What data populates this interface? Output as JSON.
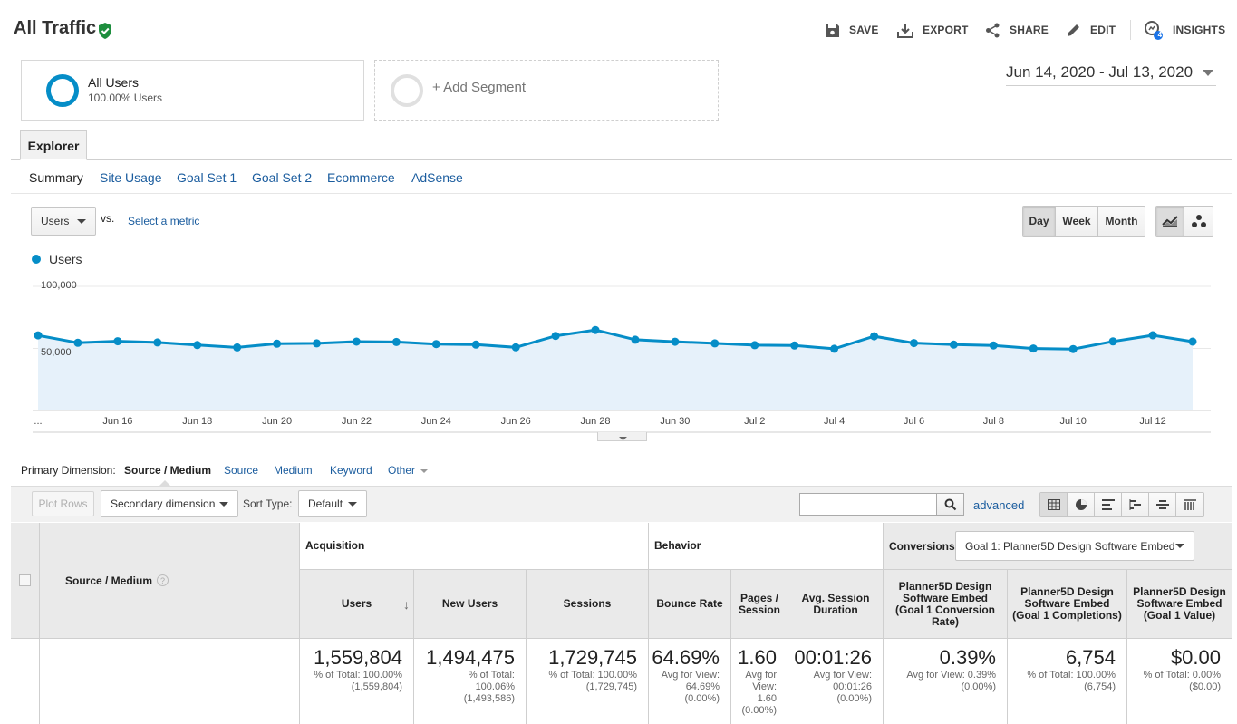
{
  "header": {
    "title": "All Traffic",
    "toolbar": [
      {
        "label": "SAVE",
        "icon": "save-icon"
      },
      {
        "label": "EXPORT",
        "icon": "export-icon"
      },
      {
        "label": "SHARE",
        "icon": "share-icon"
      },
      {
        "label": "EDIT",
        "icon": "edit-icon"
      },
      {
        "label": "INSIGHTS",
        "icon": "insights-icon",
        "badge": "4"
      }
    ]
  },
  "segments": {
    "active": {
      "name": "All Users",
      "sub": "100.00% Users"
    },
    "add_label": "+ Add Segment"
  },
  "date_range": "Jun 14, 2020 - Jul 13, 2020",
  "tabs": {
    "explorer": "Explorer",
    "subtabs": [
      "Summary",
      "Site Usage",
      "Goal Set 1",
      "Goal Set 2",
      "Ecommerce",
      "AdSense"
    ]
  },
  "chart_controls": {
    "metric": "Users",
    "vs": "vs.",
    "select_metric": "Select a metric",
    "periods": [
      "Day",
      "Week",
      "Month"
    ],
    "active_period": "Day"
  },
  "chart_data": {
    "type": "line",
    "title": "",
    "series": [
      {
        "name": "Users",
        "values": [
          60500,
          54500,
          55800,
          54800,
          52700,
          50800,
          53800,
          54100,
          55500,
          55200,
          53500,
          53100,
          50900,
          60100,
          64800,
          57000,
          55400,
          54100,
          52600,
          52300,
          49700,
          59800,
          54300,
          53100,
          52400,
          49900,
          49500,
          55600,
          60600,
          55500
        ]
      }
    ],
    "x_tick_labels": [
      "...",
      "Jun 16",
      "Jun 18",
      "Jun 20",
      "Jun 22",
      "Jun 24",
      "Jun 26",
      "Jun 28",
      "Jun 30",
      "Jul 2",
      "Jul 4",
      "Jul 6",
      "Jul 8",
      "Jul 10",
      "Jul 12"
    ],
    "y_tick_labels": [
      "100,000",
      "50,000"
    ],
    "ylim": [
      0,
      100000
    ],
    "color": "#058dc7",
    "fill": "#e6f1fa"
  },
  "primary_dimension": {
    "label": "Primary Dimension:",
    "active": "Source / Medium",
    "options": [
      "Source",
      "Medium",
      "Keyword",
      "Other"
    ]
  },
  "table_toolbar": {
    "plot_rows": "Plot Rows",
    "secondary": "Secondary dimension",
    "sort_label": "Sort Type:",
    "sort_value": "Default",
    "advanced": "advanced"
  },
  "table": {
    "dimension_header": "Source / Medium",
    "groups": {
      "acquisition": "Acquisition",
      "behavior": "Behavior",
      "conversions": "Conversions",
      "goal_select": "Goal 1: Planner5D Design Software Embed"
    },
    "columns": [
      {
        "header": "Users",
        "value": "1,559,804",
        "sub": [
          "% of Total: 100.00%",
          "(1,559,804)"
        ]
      },
      {
        "header": "New Users",
        "value": "1,494,475",
        "sub": [
          "% of Total:",
          "100.06%",
          "(1,493,586)"
        ]
      },
      {
        "header": "Sessions",
        "value": "1,729,745",
        "sub": [
          "% of Total: 100.00%",
          "(1,729,745)"
        ]
      },
      {
        "header": "Bounce Rate",
        "value": "64.69%",
        "sub": [
          "Avg for View:",
          "64.69%",
          "(0.00%)"
        ]
      },
      {
        "header": "Pages / Session",
        "value": "1.60",
        "sub": [
          "Avg for",
          "View:",
          "1.60",
          "(0.00%)"
        ]
      },
      {
        "header": "Avg. Session Duration",
        "value": "00:01:26",
        "sub": [
          "Avg for View:",
          "00:01:26",
          "(0.00%)"
        ]
      },
      {
        "header": "Planner5D Design Software Embed (Goal 1 Conversion Rate)",
        "value": "0.39%",
        "sub": [
          "Avg for View: 0.39%",
          "(0.00%)"
        ]
      },
      {
        "header": "Planner5D Design Software Embed (Goal 1 Completions)",
        "value": "6,754",
        "sub": [
          "% of Total: 100.00%",
          "(6,754)"
        ]
      },
      {
        "header": "Planner5D Design Software Embed (Goal 1 Value)",
        "value": "$0.00",
        "sub": [
          "% of Total: 0.00%",
          "($0.00)"
        ]
      }
    ]
  }
}
